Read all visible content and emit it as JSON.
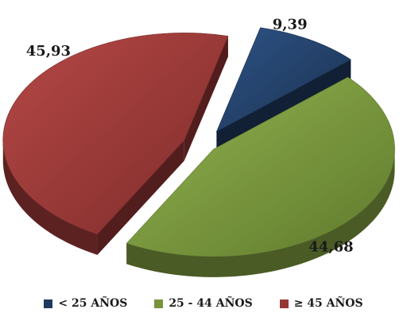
{
  "chart_data": {
    "type": "pie",
    "categories": [
      "< 25 AÑOS",
      "25 - 44 AÑOS",
      "≥ 45 AÑOS"
    ],
    "values": [
      9.39,
      44.68,
      45.93
    ],
    "value_labels": [
      "9,39",
      "44,68",
      "45,93"
    ],
    "colors": [
      "#1F3A5F",
      "#77933C",
      "#953735"
    ],
    "style": "3d-exploded",
    "legend": "bottom"
  }
}
